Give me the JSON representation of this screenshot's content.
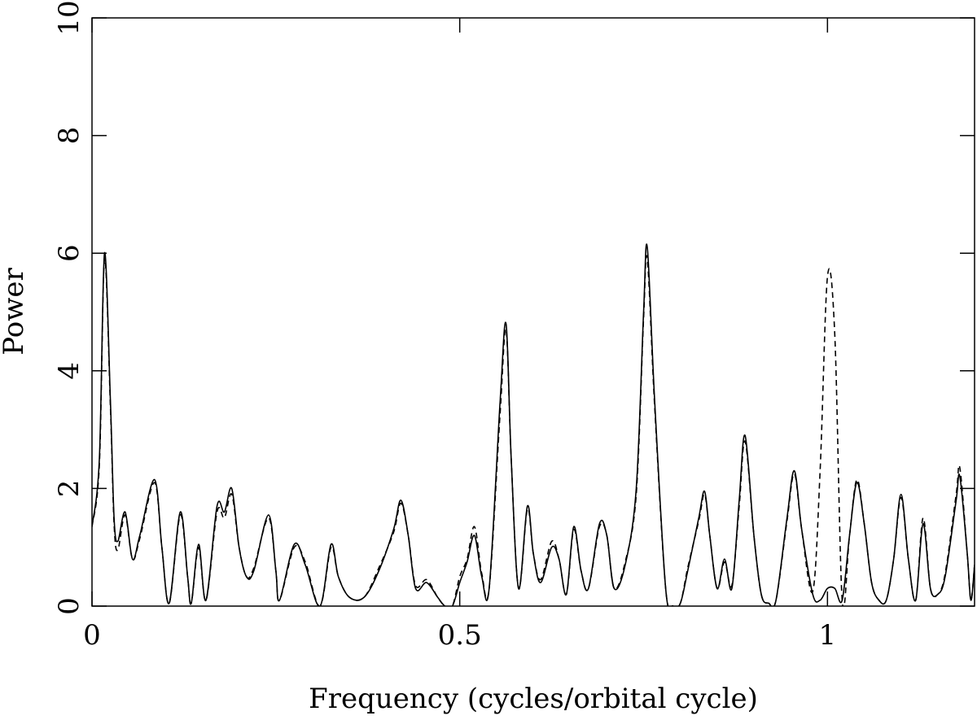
{
  "chart_data": {
    "type": "line",
    "x_label": "Frequency (cycles/orbital cycle)",
    "y_label": "Power",
    "x": [
      0,
      0.01,
      0.017,
      0.025,
      0.03,
      0.035,
      0.045,
      0.055,
      0.065,
      0.085,
      0.095,
      0.105,
      0.12,
      0.13,
      0.135,
      0.145,
      0.155,
      0.17,
      0.18,
      0.19,
      0.2,
      0.21,
      0.22,
      0.24,
      0.25,
      0.255,
      0.275,
      0.29,
      0.31,
      0.325,
      0.335,
      0.35,
      0.37,
      0.39,
      0.41,
      0.42,
      0.43,
      0.44,
      0.455,
      0.47,
      0.48,
      0.49,
      0.5,
      0.51,
      0.52,
      0.53,
      0.54,
      0.555,
      0.563,
      0.57,
      0.58,
      0.592,
      0.6,
      0.61,
      0.625,
      0.635,
      0.645,
      0.655,
      0.665,
      0.675,
      0.69,
      0.7,
      0.71,
      0.725,
      0.74,
      0.75,
      0.755,
      0.765,
      0.78,
      0.79,
      0.8,
      0.81,
      0.825,
      0.833,
      0.84,
      0.85,
      0.86,
      0.87,
      0.88,
      0.888,
      0.9,
      0.91,
      0.92,
      0.93,
      0.945,
      0.955,
      0.965,
      0.98,
      0.99,
      1.0,
      1.01,
      1.02,
      1.03,
      1.04,
      1.05,
      1.06,
      1.07,
      1.08,
      1.09,
      1.1,
      1.11,
      1.12,
      1.13,
      1.14,
      1.15,
      1.16,
      1.175,
      1.18,
      1.19,
      1.195,
      1.2
    ],
    "series": [
      {
        "name": "solid",
        "color": "#000000",
        "line_style": "solid",
        "values": [
          1.35,
          2.5,
          6.0,
          3.5,
          1.5,
          1.1,
          1.6,
          0.8,
          1.2,
          2.15,
          1.0,
          0.05,
          1.6,
          0.5,
          0.05,
          1.05,
          0.1,
          1.7,
          1.6,
          2.0,
          1.0,
          0.5,
          0.6,
          1.55,
          0.6,
          0.1,
          1.05,
          0.7,
          0.0,
          1.05,
          0.5,
          0.15,
          0.15,
          0.6,
          1.3,
          1.8,
          1.2,
          0.3,
          0.4,
          0.15,
          0.0,
          0.0,
          0.4,
          0.75,
          1.2,
          0.5,
          0.3,
          3.5,
          4.8,
          2.5,
          0.3,
          1.7,
          0.9,
          0.4,
          1.0,
          0.8,
          0.2,
          1.35,
          0.6,
          0.3,
          1.4,
          1.2,
          0.3,
          0.7,
          2.0,
          5.0,
          6.1,
          3.5,
          0.3,
          0.0,
          0.05,
          0.6,
          1.5,
          1.95,
          1.2,
          0.3,
          0.8,
          0.3,
          1.8,
          2.9,
          1.2,
          0.2,
          0.05,
          0.1,
          1.5,
          2.3,
          1.3,
          0.2,
          0.1,
          0.3,
          0.3,
          0.1,
          1.2,
          2.1,
          1.4,
          0.4,
          0.1,
          0.1,
          0.8,
          1.9,
          0.8,
          0.1,
          1.4,
          0.3,
          0.2,
          0.5,
          1.8,
          2.2,
          0.9,
          0.1,
          0.7
        ]
      },
      {
        "name": "dashed",
        "color": "#000000",
        "line_style": "dashed",
        "values": [
          1.35,
          2.4,
          5.9,
          3.4,
          1.4,
          0.95,
          1.55,
          0.8,
          1.15,
          2.1,
          1.0,
          0.05,
          1.55,
          0.5,
          0.05,
          1.0,
          0.1,
          1.6,
          1.5,
          1.9,
          1.0,
          0.5,
          0.65,
          1.5,
          0.6,
          0.1,
          1.0,
          0.75,
          0.0,
          1.0,
          0.5,
          0.15,
          0.15,
          0.65,
          1.25,
          1.75,
          1.2,
          0.35,
          0.45,
          0.15,
          0.0,
          0.0,
          0.5,
          0.8,
          1.35,
          0.55,
          0.3,
          3.3,
          4.7,
          2.5,
          0.3,
          1.65,
          0.9,
          0.45,
          1.1,
          0.8,
          0.2,
          1.3,
          0.6,
          0.3,
          1.35,
          1.2,
          0.3,
          0.75,
          1.9,
          4.9,
          5.9,
          3.4,
          0.3,
          0.0,
          0.05,
          0.65,
          1.45,
          1.9,
          1.2,
          0.3,
          0.75,
          0.35,
          1.7,
          2.8,
          1.2,
          0.2,
          0.05,
          0.1,
          1.45,
          2.25,
          1.3,
          0.25,
          2.3,
          5.6,
          4.6,
          0.1,
          1.2,
          2.15,
          1.4,
          0.4,
          0.1,
          0.1,
          0.8,
          1.85,
          0.8,
          0.1,
          1.5,
          0.3,
          0.2,
          0.55,
          1.9,
          2.35,
          0.9,
          0.1,
          0.7
        ]
      }
    ],
    "xlim": [
      0,
      1.2
    ],
    "ylim": [
      0,
      10
    ],
    "xticks": [
      0,
      0.5,
      1
    ],
    "yticks": [
      0,
      2,
      4,
      6,
      8,
      10
    ],
    "legend": false
  }
}
